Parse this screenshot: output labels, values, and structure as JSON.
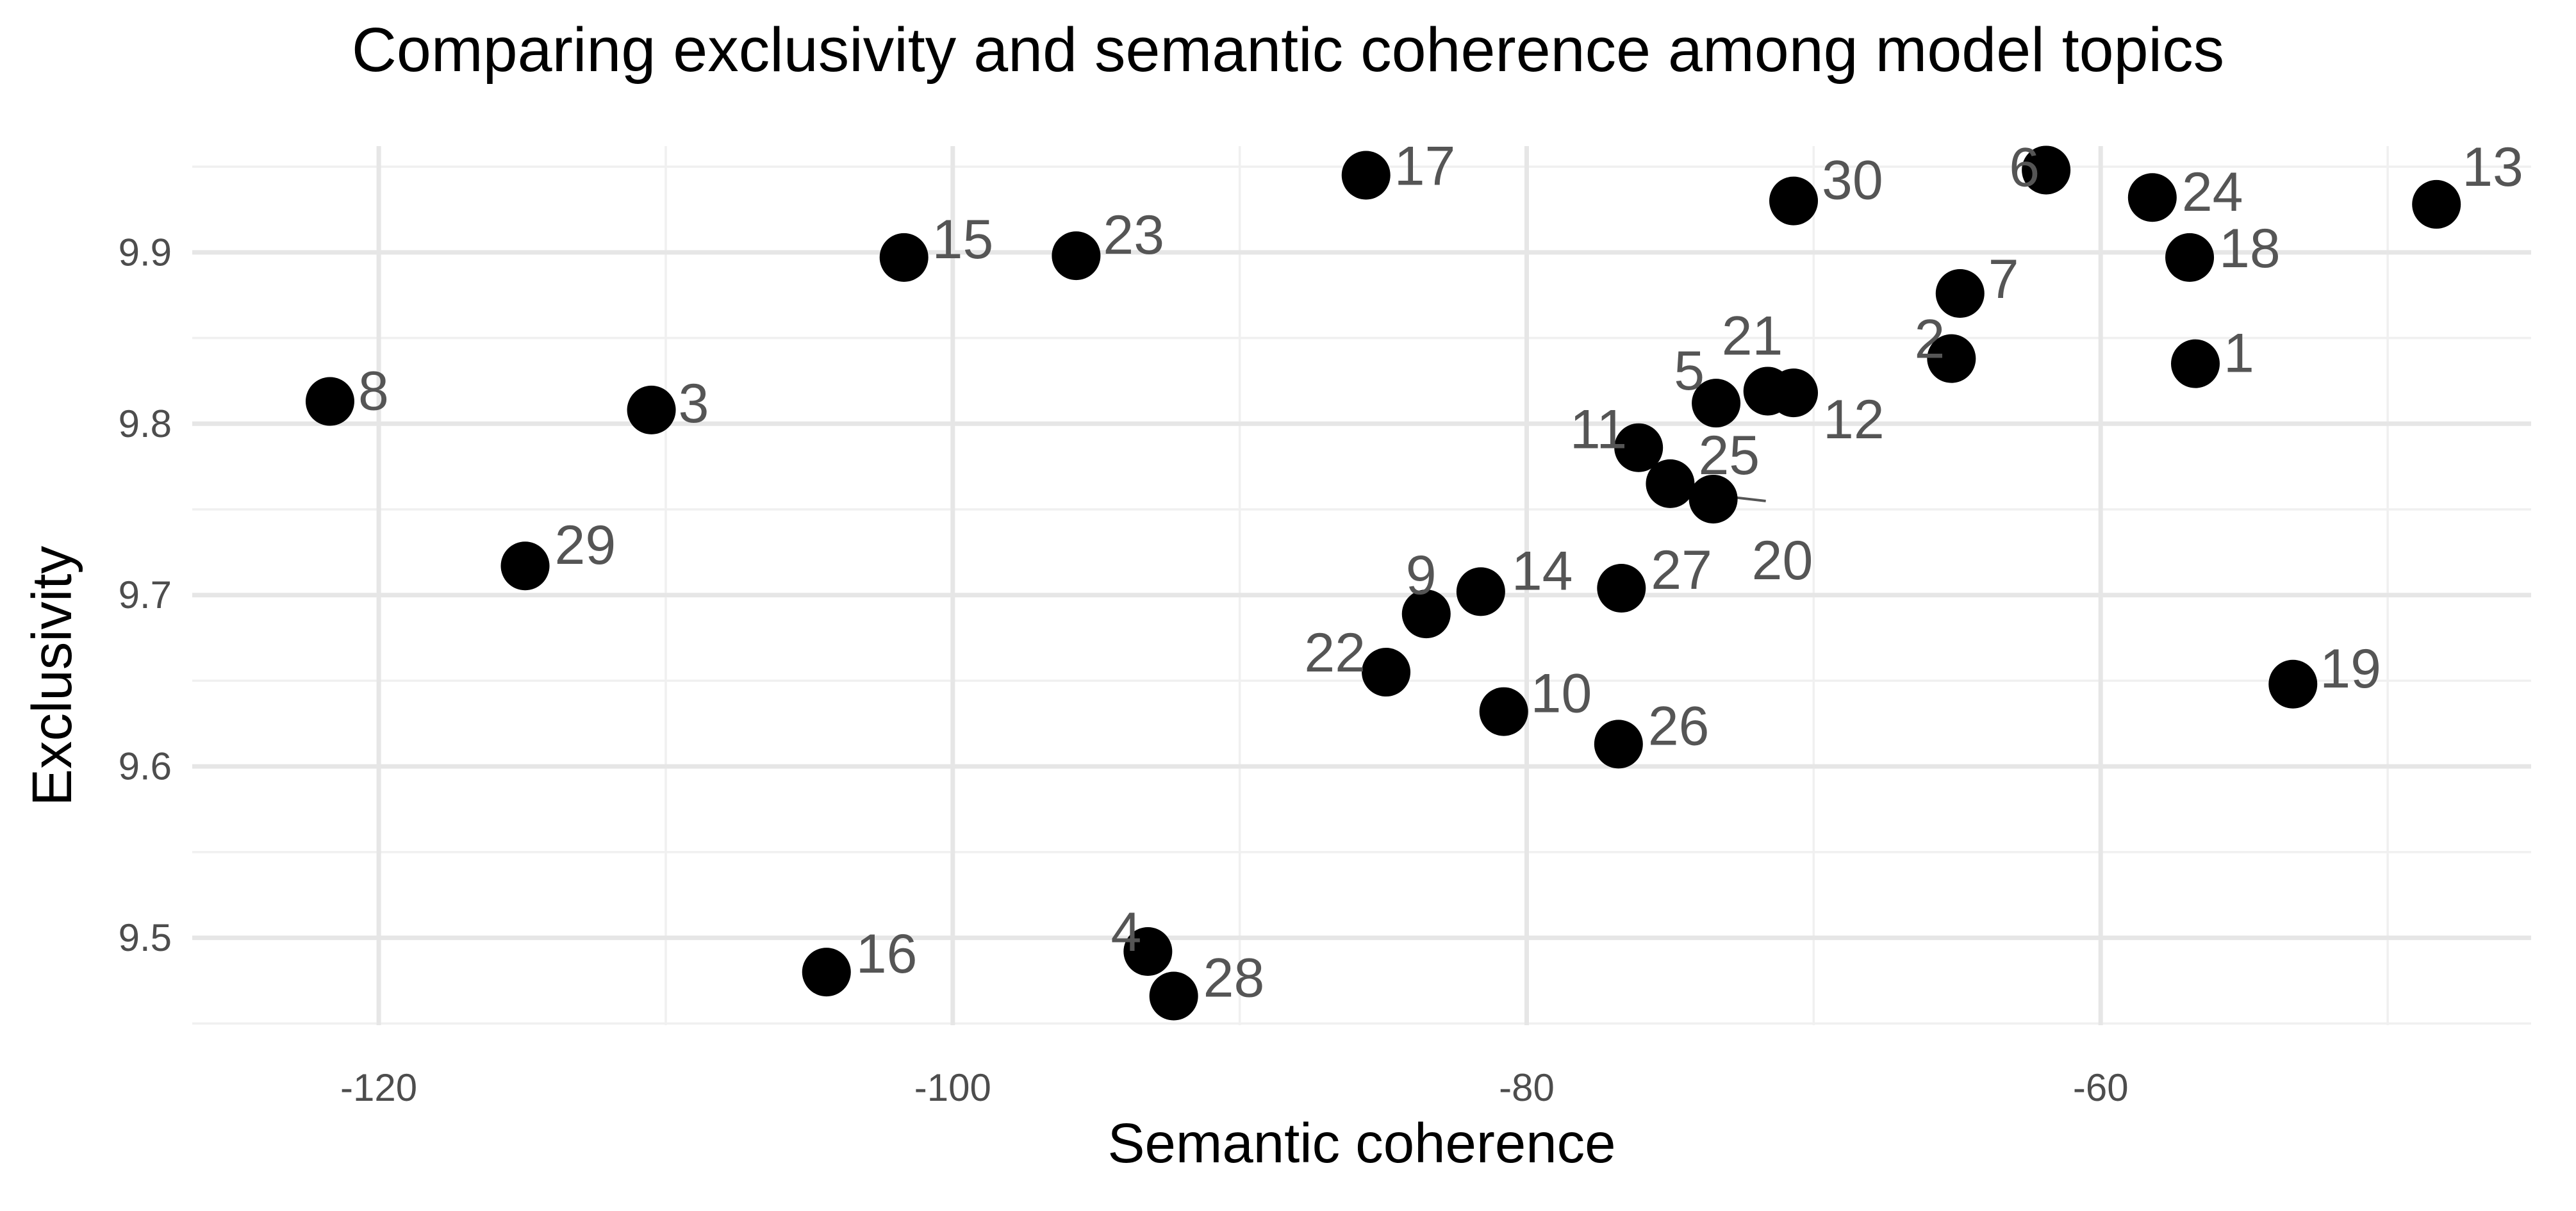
{
  "chart_data": {
    "type": "scatter",
    "title": "Comparing exclusivity and semantic coherence among model topics",
    "xlabel": "Semantic coherence",
    "ylabel": "Exclusivity",
    "xlim": [
      -126.5,
      -45
    ],
    "ylim": [
      9.449,
      9.962
    ],
    "x_ticks": [
      -120,
      -100,
      -80,
      -60
    ],
    "y_ticks": [
      9.5,
      9.6,
      9.7,
      9.8,
      9.9
    ],
    "x_tick_labels": [
      "-120",
      "-100",
      "-80",
      "-60"
    ],
    "y_tick_labels": [
      "9.5",
      "9.6",
      "9.7",
      "9.8",
      "9.9"
    ],
    "grid": true,
    "legend": "none",
    "point_color": "#000000",
    "label_color": "#555555",
    "points": [
      {
        "label": "1",
        "x": -56.7,
        "y": 9.835
      },
      {
        "label": "2",
        "x": -65.2,
        "y": 9.838
      },
      {
        "label": "3",
        "x": -110.5,
        "y": 9.808
      },
      {
        "label": "4",
        "x": -93.2,
        "y": 9.492
      },
      {
        "label": "5",
        "x": -73.4,
        "y": 9.812
      },
      {
        "label": "6",
        "x": -61.9,
        "y": 9.948
      },
      {
        "label": "7",
        "x": -64.9,
        "y": 9.876
      },
      {
        "label": "8",
        "x": -121.7,
        "y": 9.813
      },
      {
        "label": "9",
        "x": -83.5,
        "y": 9.689
      },
      {
        "label": "10",
        "x": -80.8,
        "y": 9.632
      },
      {
        "label": "11",
        "x": -76.1,
        "y": 9.786
      },
      {
        "label": "12",
        "x": -70.7,
        "y": 9.818
      },
      {
        "label": "13",
        "x": -48.3,
        "y": 9.928
      },
      {
        "label": "14",
        "x": -81.6,
        "y": 9.702
      },
      {
        "label": "15",
        "x": -101.7,
        "y": 9.897
      },
      {
        "label": "16",
        "x": -104.4,
        "y": 9.48
      },
      {
        "label": "17",
        "x": -85.6,
        "y": 9.945
      },
      {
        "label": "18",
        "x": -56.9,
        "y": 9.897
      },
      {
        "label": "19",
        "x": -53.3,
        "y": 9.648
      },
      {
        "label": "20",
        "x": -73.5,
        "y": 9.756
      },
      {
        "label": "21",
        "x": -71.6,
        "y": 9.819
      },
      {
        "label": "22",
        "x": -84.9,
        "y": 9.655
      },
      {
        "label": "23",
        "x": -95.7,
        "y": 9.898
      },
      {
        "label": "24",
        "x": -58.2,
        "y": 9.932
      },
      {
        "label": "25",
        "x": -75.0,
        "y": 9.765
      },
      {
        "label": "26",
        "x": -76.8,
        "y": 9.613
      },
      {
        "label": "27",
        "x": -76.7,
        "y": 9.704
      },
      {
        "label": "28",
        "x": -92.3,
        "y": 9.466
      },
      {
        "label": "29",
        "x": -114.9,
        "y": 9.717
      },
      {
        "label": "30",
        "x": -70.7,
        "y": 9.93
      }
    ]
  }
}
